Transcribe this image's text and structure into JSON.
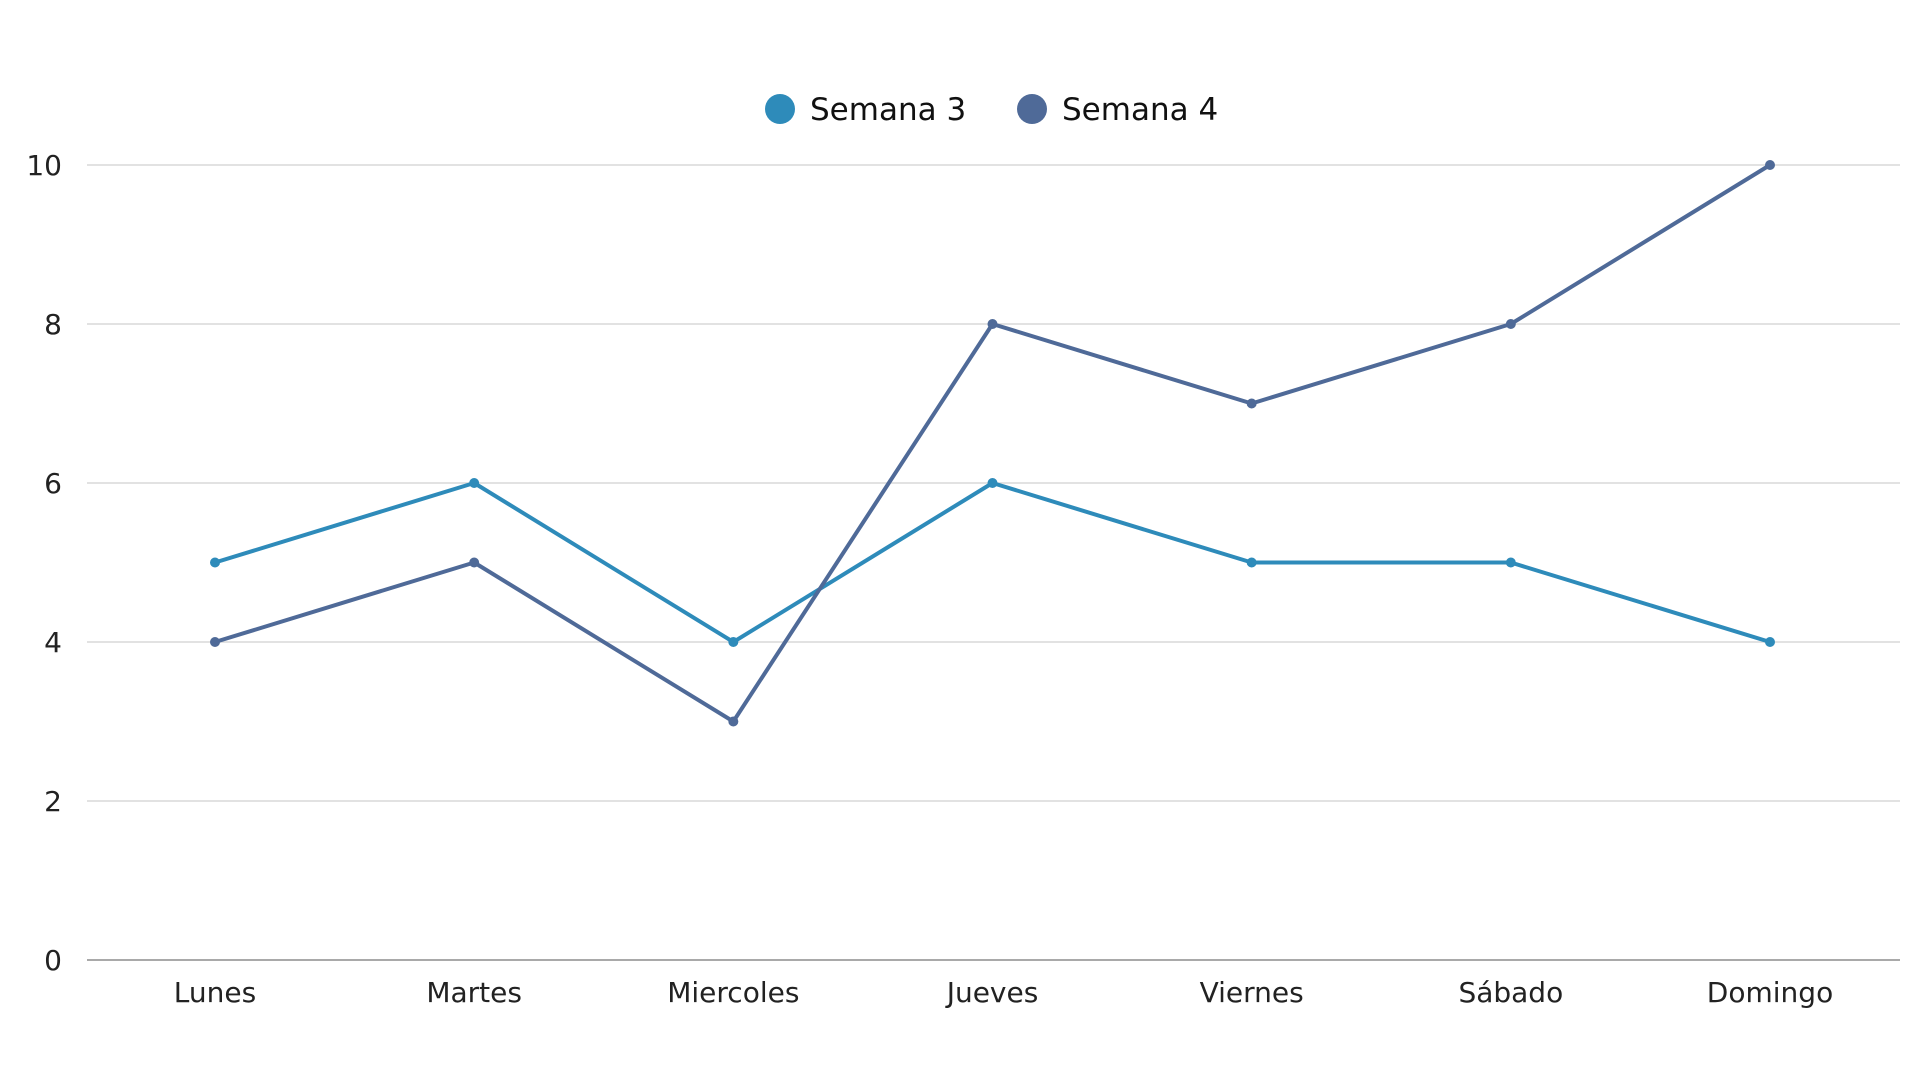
{
  "chart_data": {
    "type": "line",
    "title": "",
    "xlabel": "",
    "ylabel": "",
    "categories": [
      "Lunes",
      "Martes",
      "Miercoles",
      "Jueves",
      "Viernes",
      "Sábado",
      "Domingo"
    ],
    "ylim": [
      0,
      10
    ],
    "yticks": [
      0,
      2,
      4,
      6,
      8,
      10
    ],
    "grid": true,
    "legend_position": "top-center",
    "series": [
      {
        "name": "Semana 3",
        "color": "#2e8bba",
        "values": [
          5,
          6,
          4,
          6,
          5,
          5,
          4
        ]
      },
      {
        "name": "Semana 4",
        "color": "#4f6a98",
        "values": [
          4,
          5,
          3,
          8,
          7,
          8,
          10
        ]
      }
    ]
  }
}
